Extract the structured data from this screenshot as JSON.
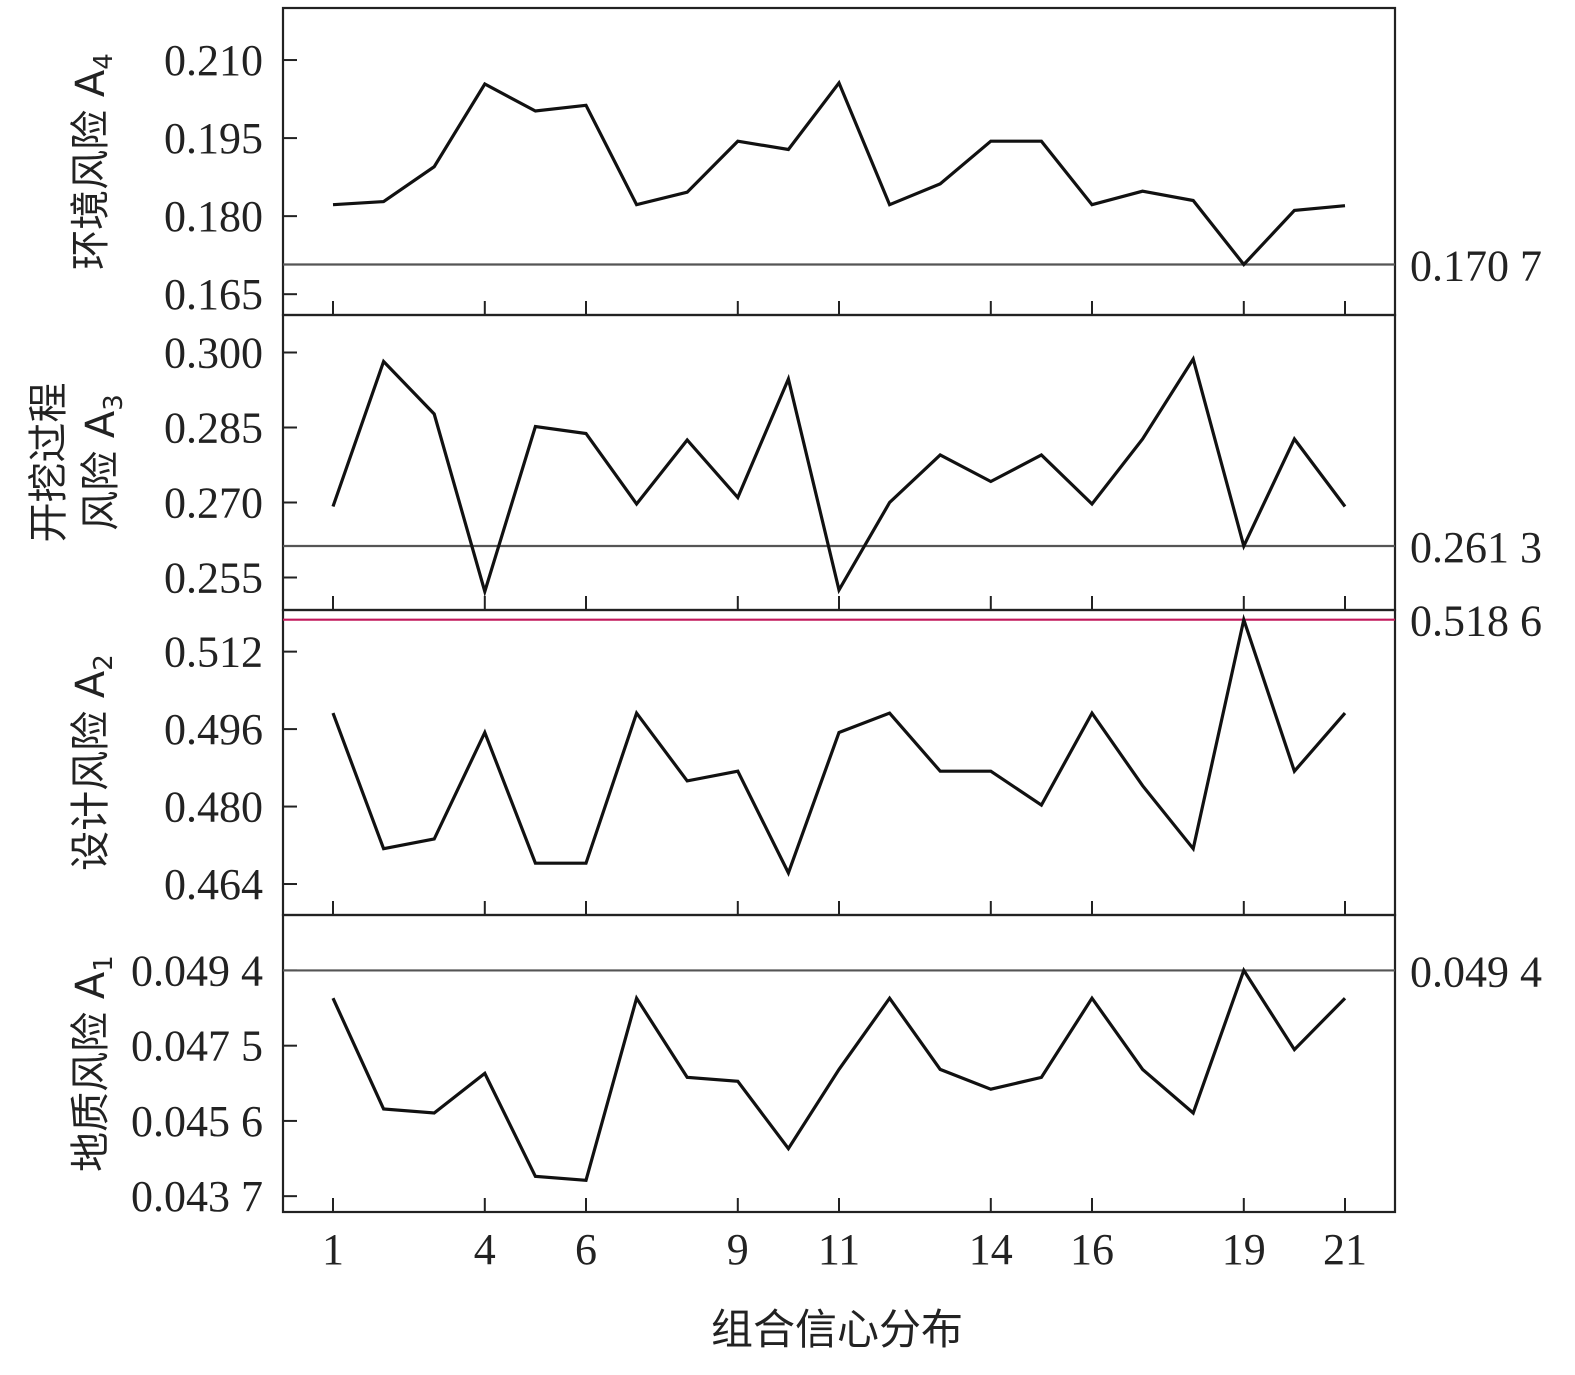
{
  "chart_data": {
    "type": "line",
    "xlabel": "组合信心分布",
    "x": [
      1,
      2,
      3,
      4,
      5,
      6,
      7,
      8,
      9,
      10,
      11,
      12,
      13,
      14,
      15,
      16,
      17,
      18,
      19,
      20,
      21
    ],
    "x_ticks": [
      1,
      4,
      6,
      9,
      11,
      14,
      16,
      19,
      21
    ],
    "panels": [
      {
        "ylabel": "环境风险 A",
        "ylabel_sub": "4",
        "ylim": [
          0.161,
          0.22
        ],
        "yticks": [
          0.165,
          0.18,
          0.195,
          0.21
        ],
        "ytick_labels": [
          "0.165",
          "0.180",
          "0.195",
          "0.210"
        ],
        "reference": {
          "value": 0.1707,
          "label": "0.170 7",
          "color": "#555555"
        },
        "values": [
          0.1822,
          0.1828,
          0.1895,
          0.2054,
          0.2002,
          0.2013,
          0.1822,
          0.1846,
          0.1944,
          0.1928,
          0.2056,
          0.1822,
          0.1862,
          0.1944,
          0.1944,
          0.1822,
          0.1848,
          0.183,
          0.1707,
          0.1811,
          0.182
        ]
      },
      {
        "ylabel": "开挖过程",
        "ylabel2": "风险 A",
        "ylabel_sub": "3",
        "ylim": [
          0.2485,
          0.3075
        ],
        "yticks": [
          0.255,
          0.27,
          0.285,
          0.3
        ],
        "ytick_labels": [
          "0.255",
          "0.270",
          "0.285",
          "0.300"
        ],
        "reference": {
          "value": 0.2613,
          "label": "0.261 3",
          "color": "#555555"
        },
        "values": [
          0.2692,
          0.2982,
          0.2877,
          0.2522,
          0.2852,
          0.2838,
          0.2697,
          0.2825,
          0.271,
          0.2947,
          0.2525,
          0.27,
          0.2795,
          0.2742,
          0.2795,
          0.2697,
          0.2827,
          0.2987,
          0.2613,
          0.2827,
          0.2692
        ]
      },
      {
        "ylabel": "设计风险 A",
        "ylabel_sub": "2",
        "ylim": [
          0.4576,
          0.5206
        ],
        "yticks": [
          0.464,
          0.48,
          0.496,
          0.512
        ],
        "ytick_labels": [
          "0.464",
          "0.480",
          "0.496",
          "0.512"
        ],
        "reference": {
          "value": 0.5186,
          "label": "0.518 6",
          "color": "#c2185b"
        },
        "values": [
          0.4993,
          0.4713,
          0.4733,
          0.4953,
          0.4683,
          0.4683,
          0.4993,
          0.4853,
          0.4873,
          0.4663,
          0.4953,
          0.4993,
          0.4873,
          0.4873,
          0.4803,
          0.4993,
          0.4843,
          0.4713,
          0.5186,
          0.4873,
          0.4993
        ]
      },
      {
        "ylabel": "地质风险 A",
        "ylabel_sub": "1",
        "ylim": [
          0.0433,
          0.0508
        ],
        "yticks": [
          0.0437,
          0.0456,
          0.0475,
          0.0494
        ],
        "ytick_labels": [
          "0.043 7",
          "0.045 6",
          "0.047 5",
          "0.049 4"
        ],
        "reference": {
          "value": 0.0494,
          "label": "0.049 4",
          "color": "#555555"
        },
        "values": [
          0.0487,
          0.0459,
          0.0458,
          0.0468,
          0.0442,
          0.0441,
          0.0487,
          0.0467,
          0.0466,
          0.0449,
          0.0469,
          0.0487,
          0.0469,
          0.0464,
          0.0467,
          0.0487,
          0.0469,
          0.0458,
          0.0494,
          0.0474,
          0.0487
        ]
      }
    ]
  }
}
